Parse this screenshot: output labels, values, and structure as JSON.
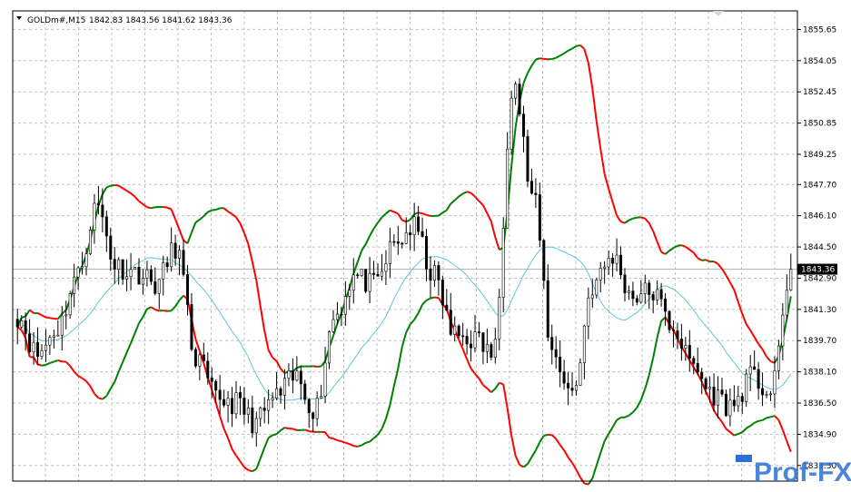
{
  "chart_header": {
    "symbol": "GOLDm#,M15",
    "ohlc": "1842.83 1843.56 1841.62 1843.36"
  },
  "watermark": {
    "text": "Prof-FX"
  },
  "chart_data": {
    "type": "candlestick",
    "title": "GOLDm#,M15",
    "xlabel": "",
    "ylabel": "",
    "ylim": [
      1832.5,
      1856.6
    ],
    "grid": true,
    "y_ticks": [
      "1855.65",
      "1854.05",
      "1852.45",
      "1850.85",
      "1849.25",
      "1847.70",
      "1846.10",
      "1844.50",
      "1842.90",
      "1841.30",
      "1839.70",
      "1838.10",
      "1836.50",
      "1834.90",
      "1833.30"
    ],
    "current_price_label": "1843.36",
    "candles": [],
    "series": [],
    "colors": {
      "bull": "#000000",
      "bear": "#000000",
      "upper_band_rising": "#008000",
      "band_falling": "#ff0000",
      "middle_line": "#5cc7d6",
      "grid": "#c0c0c0"
    }
  }
}
